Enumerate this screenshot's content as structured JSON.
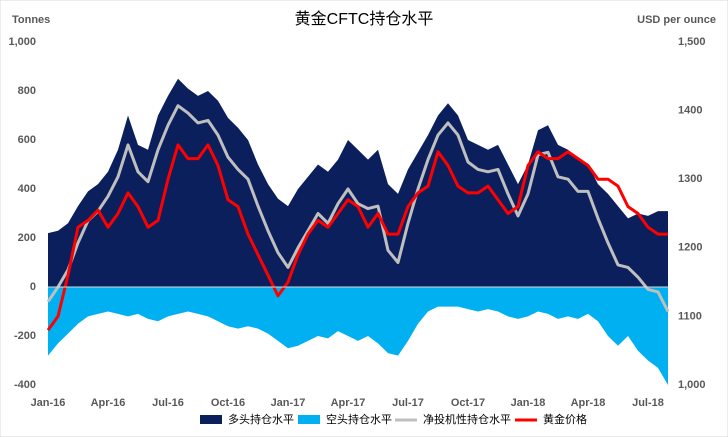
{
  "chart_data": {
    "type": "combo",
    "title": "黄金CFTC持仓水平",
    "y_label": "Tonnes",
    "y2_label": "USD per ounce",
    "categories": [
      "Jan-16",
      null,
      null,
      null,
      null,
      null,
      "Apr-16",
      null,
      null,
      null,
      null,
      null,
      "Jul-16",
      null,
      null,
      null,
      null,
      null,
      "Oct-16",
      null,
      null,
      null,
      null,
      null,
      "Jan-17",
      null,
      null,
      null,
      null,
      null,
      "Apr-17",
      null,
      null,
      null,
      null,
      null,
      "Jul-17",
      null,
      null,
      null,
      null,
      null,
      "Oct-17",
      null,
      null,
      null,
      null,
      null,
      "Jan-18",
      null,
      null,
      null,
      null,
      null,
      "Apr-18",
      null,
      null,
      null,
      null,
      null,
      "Jul-18",
      null,
      null
    ],
    "ylim": [
      -400,
      1000
    ],
    "yticks": [
      -400,
      -200,
      0,
      200,
      400,
      600,
      800,
      {
        "value": 1000,
        "label": "1,000"
      }
    ],
    "y2lim": [
      1000,
      1500
    ],
    "y2ticks": [
      {
        "value": 1000,
        "label": "1,000"
      },
      1100,
      1200,
      1300,
      1400,
      {
        "value": 1500,
        "label": "1,500"
      }
    ],
    "series": [
      {
        "name": "多头持仓水平",
        "kind": "area",
        "color": "#0b1f5c",
        "values": [
          220,
          230,
          260,
          330,
          390,
          420,
          470,
          560,
          700,
          580,
          560,
          700,
          780,
          850,
          810,
          780,
          800,
          760,
          690,
          650,
          600,
          500,
          420,
          360,
          330,
          400,
          450,
          500,
          470,
          520,
          600,
          560,
          520,
          560,
          420,
          380,
          480,
          550,
          620,
          700,
          750,
          700,
          600,
          580,
          560,
          580,
          500,
          420,
          500,
          640,
          660,
          580,
          560,
          520,
          500,
          420,
          380,
          330,
          280,
          300,
          290,
          310,
          310
        ]
      },
      {
        "name": "空头持仓水平",
        "kind": "area",
        "color": "#00b0f0",
        "values": [
          -280,
          -230,
          -190,
          -150,
          -120,
          -110,
          -100,
          -110,
          -120,
          -110,
          -130,
          -140,
          -120,
          -110,
          -100,
          -110,
          -120,
          -140,
          -160,
          -170,
          -160,
          -170,
          -190,
          -220,
          -250,
          -240,
          -220,
          -200,
          -210,
          -180,
          -200,
          -220,
          -200,
          -230,
          -270,
          -280,
          -220,
          -150,
          -100,
          -80,
          -80,
          -80,
          -90,
          -100,
          -90,
          -100,
          -120,
          -130,
          -120,
          -100,
          -110,
          -130,
          -120,
          -130,
          -110,
          -140,
          -200,
          -240,
          -200,
          -260,
          -300,
          -330,
          -400
        ]
      },
      {
        "name": "净投机性持仓水平",
        "kind": "line",
        "color": "#bfbfbf",
        "values": [
          -60,
          0,
          70,
          180,
          270,
          310,
          370,
          450,
          580,
          470,
          430,
          560,
          660,
          740,
          710,
          670,
          680,
          620,
          530,
          480,
          440,
          330,
          230,
          140,
          80,
          160,
          230,
          300,
          260,
          340,
          400,
          340,
          320,
          330,
          150,
          100,
          260,
          400,
          520,
          620,
          670,
          620,
          510,
          480,
          470,
          480,
          380,
          290,
          380,
          540,
          550,
          450,
          440,
          390,
          390,
          280,
          180,
          90,
          80,
          40,
          -10,
          -20,
          -100
        ]
      },
      {
        "name": "黄金价格",
        "kind": "line",
        "axis": "y2",
        "color": "#ff0000",
        "values": [
          1080,
          1100,
          1160,
          1230,
          1240,
          1255,
          1230,
          1250,
          1280,
          1260,
          1230,
          1240,
          1300,
          1350,
          1330,
          1330,
          1350,
          1320,
          1270,
          1260,
          1220,
          1190,
          1160,
          1130,
          1150,
          1190,
          1220,
          1240,
          1230,
          1250,
          1270,
          1260,
          1230,
          1250,
          1220,
          1220,
          1260,
          1280,
          1290,
          1340,
          1320,
          1290,
          1280,
          1280,
          1290,
          1270,
          1250,
          1260,
          1320,
          1340,
          1330,
          1330,
          1340,
          1330,
          1320,
          1300,
          1300,
          1290,
          1260,
          1250,
          1230,
          1220,
          1220
        ]
      }
    ]
  }
}
